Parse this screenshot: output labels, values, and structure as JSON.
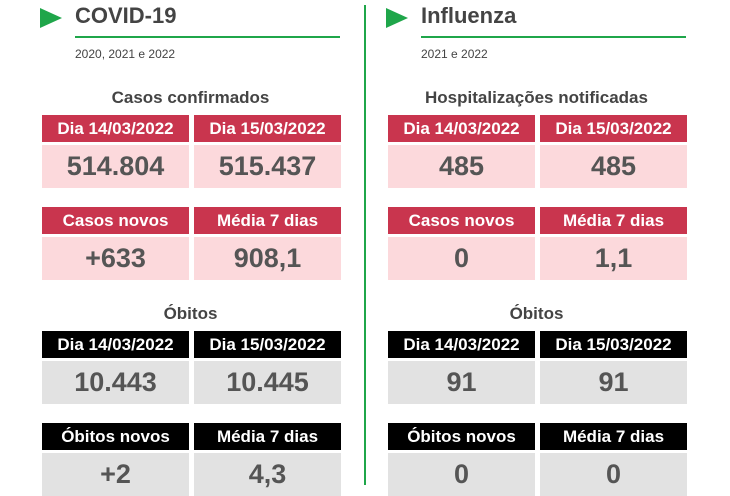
{
  "panels": [
    {
      "title": "COVID-19",
      "subtitle": "2020, 2021 e 2022",
      "sections": [
        {
          "heading": "Casos confirmados",
          "tables": [
            {
              "headers": [
                "Dia 14/03/2022",
                "Dia 15/03/2022"
              ],
              "values": [
                "514.804",
                "515.437"
              ]
            },
            {
              "headers": [
                "Casos novos",
                "Média 7 dias"
              ],
              "values": [
                "+633",
                "908,1"
              ]
            }
          ]
        },
        {
          "heading": "Óbitos",
          "tables": [
            {
              "headers": [
                "Dia 14/03/2022",
                "Dia 15/03/2022"
              ],
              "values": [
                "10.443",
                "10.445"
              ]
            },
            {
              "headers": [
                "Óbitos novos",
                "Média 7 dias"
              ],
              "values": [
                "+2",
                "4,3"
              ]
            }
          ]
        }
      ]
    },
    {
      "title": "Influenza",
      "subtitle": "2021 e 2022",
      "sections": [
        {
          "heading": "Hospitalizações notificadas",
          "tables": [
            {
              "headers": [
                "Dia 14/03/2022",
                "Dia 15/03/2022"
              ],
              "values": [
                "485",
                "485"
              ]
            },
            {
              "headers": [
                "Casos novos",
                "Média 7 dias"
              ],
              "values": [
                "0",
                "1,1"
              ]
            }
          ]
        },
        {
          "heading": "Óbitos",
          "tables": [
            {
              "headers": [
                "Dia 14/03/2022",
                "Dia 15/03/2022"
              ],
              "values": [
                "91",
                "91"
              ]
            },
            {
              "headers": [
                "Óbitos novos",
                "Média 7 dias"
              ],
              "values": [
                "0",
                "0"
              ]
            }
          ]
        }
      ]
    }
  ]
}
